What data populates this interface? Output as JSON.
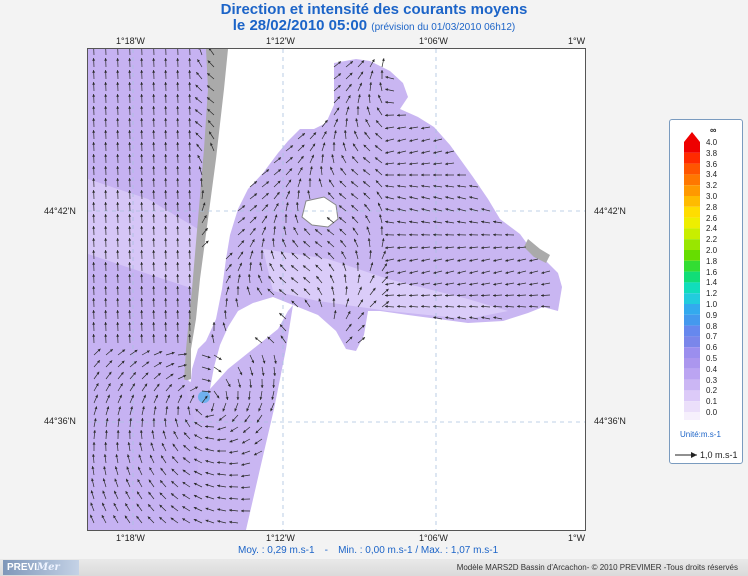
{
  "header": {
    "title": "Direction et intensité des courants moyens",
    "date": "le 28/02/2010 05:00",
    "forecast": "(prévision du 01/03/2010 06h12)"
  },
  "axes": {
    "lon_top": [
      "1°18'W",
      "1°12'W",
      "1°06'W",
      "1°W"
    ],
    "lon_bottom": [
      "1°18'W",
      "1°12'W",
      "1°06'W",
      "1°W"
    ],
    "lat_left": [
      "44°42'N",
      "44°36'N"
    ],
    "lat_right": [
      "44°42'N",
      "44°36'N"
    ]
  },
  "legend": {
    "max_symbol": "∞",
    "levels": [
      "4.0",
      "3.8",
      "3.6",
      "3.4",
      "3.2",
      "3.0",
      "2.8",
      "2.6",
      "2.4",
      "2.2",
      "2.0",
      "1.8",
      "1.6",
      "1.4",
      "1.2",
      "1.0",
      "0.9",
      "0.8",
      "0.7",
      "0.6",
      "0.5",
      "0.4",
      "0.3",
      "0.2",
      "0.1",
      "0.0"
    ],
    "colors": [
      "#ee0000",
      "#ff2a00",
      "#ff5500",
      "#ff7700",
      "#ff9900",
      "#ffbb00",
      "#ffdd00",
      "#eeee00",
      "#c8ee00",
      "#99e600",
      "#66dd00",
      "#33dd33",
      "#11dd77",
      "#11ddbb",
      "#22ccdd",
      "#33aaee",
      "#4499ee",
      "#6688ee",
      "#7a86ea",
      "#9b8eee",
      "#ab96ee",
      "#bba4f2",
      "#cbb6f4",
      "#dccaf8",
      "#ebdffa",
      "#f6f0fc"
    ],
    "unit": "Unité:m.s-1",
    "reference": "1,0 m.s-1"
  },
  "stats": {
    "mean": "Moy. : 0,29 m.s-1",
    "minmax": "Min. : 0,00 m.s-1 / Max. : 1,07 m.s-1"
  },
  "footer": {
    "logo_a": "PREVI",
    "logo_b": "Mer",
    "credit": "Modèle MARS2D Bassin d'Arcachon- © 2010 PREVIMER -Tous droits réservés"
  },
  "colors": {
    "water": "#c9b6f2",
    "water_light": "#dccdf8",
    "land": "#ffffff",
    "shore": "#aaaaaa",
    "fast": "#6fb1ee",
    "title": "#1c64c8"
  }
}
